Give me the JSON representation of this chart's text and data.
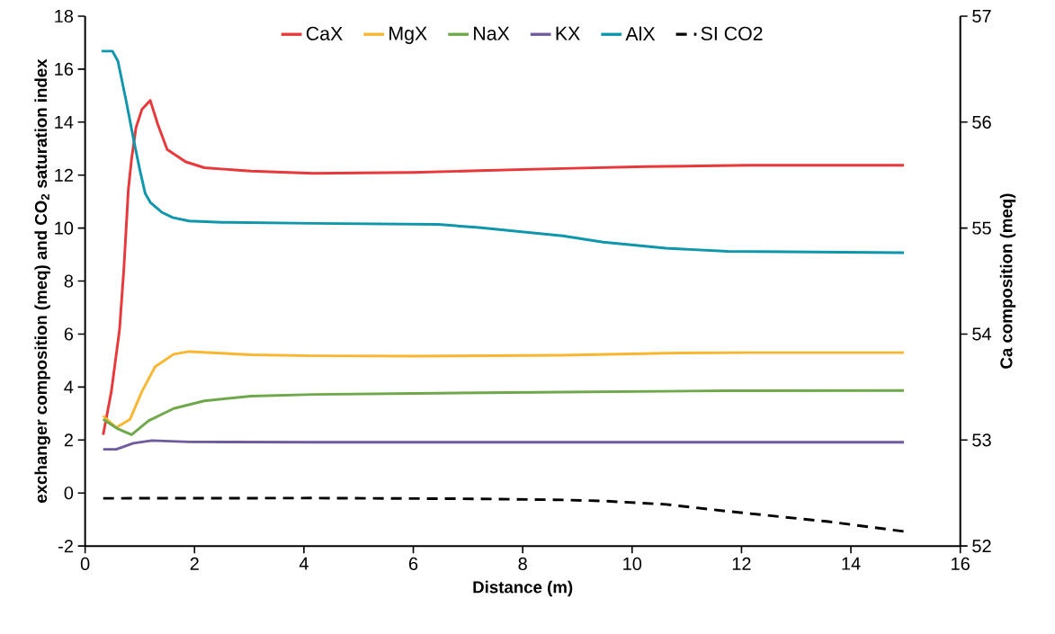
{
  "chart_data": {
    "type": "line",
    "xlabel": "Distance (m)",
    "ylabel": "exchanger composition  (meq) and CO$_{2}$ saturation index",
    "y2label": "Ca composition (meq)",
    "xlim": [
      0,
      16
    ],
    "xticks": [
      0,
      2,
      4,
      6,
      8,
      10,
      12,
      14,
      16
    ],
    "ylim": [
      -2,
      18
    ],
    "yticks": [
      -2,
      0,
      2,
      4,
      6,
      8,
      10,
      12,
      14,
      16,
      18
    ],
    "y2lim": [
      52,
      57
    ],
    "y2ticks": [
      52,
      53,
      54,
      55,
      56,
      57
    ],
    "grid": false,
    "legend": "top",
    "marker": "none",
    "series": [
      {
        "name": "CaX",
        "color": "#e8383a",
        "x": [
          0.33,
          0.48,
          0.63,
          0.71,
          0.79,
          0.85,
          0.93,
          1.04,
          1.19,
          1.33,
          1.5,
          1.84,
          2.18,
          3.03,
          4.17,
          6,
          7.2,
          8.73,
          10.24,
          12.13,
          14.97
        ],
        "values": [
          2.2,
          3.84,
          6.18,
          8.52,
          11.45,
          12.62,
          13.79,
          14.49,
          14.82,
          13.91,
          12.97,
          12.5,
          12.28,
          12.15,
          12.07,
          12.1,
          12.17,
          12.25,
          12.32,
          12.37,
          12.37
        ]
      },
      {
        "name": "MgX",
        "color": "#fbb62f",
        "x": [
          0.33,
          0.57,
          0.82,
          1.04,
          1.28,
          1.62,
          1.9,
          3.03,
          4.17,
          6,
          8.73,
          10.62,
          12.13,
          14.97
        ],
        "values": [
          2.91,
          2.47,
          2.78,
          3.84,
          4.77,
          5.24,
          5.34,
          5.22,
          5.18,
          5.17,
          5.2,
          5.28,
          5.3,
          5.3
        ]
      },
      {
        "name": "NaX",
        "color": "#6fa84a",
        "x": [
          0.33,
          0.6,
          0.85,
          1.16,
          1.62,
          2.18,
          3.03,
          4.17,
          6,
          8.73,
          11.75,
          14.97
        ],
        "values": [
          2.78,
          2.42,
          2.2,
          2.73,
          3.19,
          3.48,
          3.66,
          3.72,
          3.76,
          3.81,
          3.86,
          3.87
        ]
      },
      {
        "name": "KX",
        "color": "#6e5a9c",
        "x": [
          0.33,
          0.57,
          0.88,
          1.22,
          1.9,
          4.17,
          8.73,
          14.97
        ],
        "values": [
          1.65,
          1.65,
          1.88,
          1.98,
          1.93,
          1.92,
          1.92,
          1.92
        ]
      },
      {
        "name": "AlX",
        "color": "#0e96ad",
        "x": [
          0.3,
          0.5,
          0.6,
          0.75,
          0.9,
          1.0,
          1.1,
          1.2,
          1.4,
          1.6,
          1.9,
          2.5,
          4.17,
          6.45,
          7.2,
          8.73,
          9.47,
          10.62,
          11.75,
          14.97
        ],
        "values": [
          16.68,
          16.68,
          16.3,
          14.8,
          13.2,
          12.2,
          11.3,
          10.95,
          10.6,
          10.4,
          10.27,
          10.22,
          10.18,
          10.14,
          10.02,
          9.71,
          9.47,
          9.24,
          9.12,
          9.07
        ]
      },
      {
        "name": "SI CO2",
        "color": "#000000",
        "line_style": "dashed",
        "x": [
          0.33,
          4.16,
          7.2,
          8.73,
          9.47,
          10.62,
          11.75,
          13.59,
          14.97
        ],
        "values": [
          -0.2,
          -0.19,
          -0.22,
          -0.26,
          -0.3,
          -0.43,
          -0.69,
          -1.08,
          -1.45
        ]
      }
    ]
  }
}
